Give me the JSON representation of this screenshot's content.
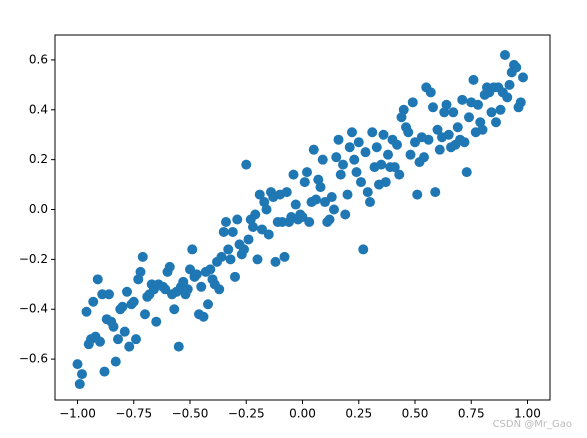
{
  "chart_data": {
    "type": "scatter",
    "color": "#1f77b4",
    "watermark": "CSDN @Mr_Gao",
    "xlim": [
      -1.1,
      1.1
    ],
    "ylim": [
      -0.764,
      0.7
    ],
    "xticks": [
      {
        "value": -1,
        "label": "−1.00"
      },
      {
        "value": -0.75,
        "label": "−0.75"
      },
      {
        "value": -0.5,
        "label": "−0.50"
      },
      {
        "value": -0.25,
        "label": "−0.25"
      },
      {
        "value": 0,
        "label": "0.00"
      },
      0.25,
      {
        "value": 0.5,
        "label": "0.50"
      },
      0.75,
      {
        "value": 1,
        "label": "1.00"
      }
    ],
    "yticks": [
      {
        "value": -0.6,
        "label": "−0.6"
      },
      {
        "value": -0.4,
        "label": "−0.4"
      },
      {
        "value": -0.2,
        "label": "−0.2"
      },
      {
        "value": 0,
        "label": "0.0"
      },
      0.2,
      0.4,
      0.6
    ],
    "x": [
      -1.0,
      -0.99,
      -0.98,
      -0.96,
      -0.95,
      -0.94,
      -0.93,
      -0.92,
      -0.91,
      -0.9,
      -0.89,
      -0.88,
      -0.87,
      -0.86,
      -0.85,
      -0.84,
      -0.83,
      -0.82,
      -0.81,
      -0.8,
      -0.79,
      -0.78,
      -0.77,
      -0.76,
      -0.75,
      -0.74,
      -0.73,
      -0.72,
      -0.71,
      -0.7,
      -0.69,
      -0.68,
      -0.67,
      -0.66,
      -0.65,
      -0.64,
      -0.62,
      -0.61,
      -0.6,
      -0.59,
      -0.58,
      -0.57,
      -0.56,
      -0.55,
      -0.54,
      -0.53,
      -0.52,
      -0.51,
      -0.5,
      -0.49,
      -0.48,
      -0.47,
      -0.46,
      -0.45,
      -0.44,
      -0.43,
      -0.42,
      -0.41,
      -0.4,
      -0.39,
      -0.38,
      -0.37,
      -0.36,
      -0.35,
      -0.34,
      -0.33,
      -0.32,
      -0.31,
      -0.3,
      -0.29,
      -0.28,
      -0.27,
      -0.26,
      -0.25,
      -0.24,
      -0.23,
      -0.22,
      -0.21,
      -0.2,
      -0.19,
      -0.18,
      -0.17,
      -0.16,
      -0.15,
      -0.14,
      -0.13,
      -0.12,
      -0.11,
      -0.1,
      -0.09,
      -0.08,
      -0.07,
      -0.06,
      -0.05,
      -0.04,
      -0.03,
      -0.02,
      -0.01,
      0.0,
      0.01,
      0.02,
      0.03,
      0.04,
      0.05,
      0.06,
      0.07,
      0.08,
      0.09,
      0.1,
      0.11,
      0.12,
      0.13,
      0.14,
      0.15,
      0.16,
      0.17,
      0.18,
      0.19,
      0.2,
      0.21,
      0.22,
      0.23,
      0.24,
      0.25,
      0.26,
      0.27,
      0.28,
      0.29,
      0.3,
      0.31,
      0.32,
      0.33,
      0.34,
      0.35,
      0.36,
      0.37,
      0.38,
      0.39,
      0.4,
      0.41,
      0.42,
      0.43,
      0.44,
      0.45,
      0.46,
      0.47,
      0.48,
      0.49,
      0.5,
      0.51,
      0.52,
      0.53,
      0.54,
      0.55,
      0.56,
      0.57,
      0.58,
      0.59,
      0.6,
      0.61,
      0.62,
      0.63,
      0.64,
      0.65,
      0.66,
      0.67,
      0.68,
      0.69,
      0.7,
      0.71,
      0.72,
      0.73,
      0.74,
      0.75,
      0.76,
      0.77,
      0.78,
      0.79,
      0.8,
      0.81,
      0.82,
      0.83,
      0.84,
      0.85,
      0.86,
      0.87,
      0.88,
      0.89,
      0.9,
      0.91,
      0.92,
      0.93,
      0.94,
      0.95,
      0.96,
      0.97,
      0.98
    ],
    "values": [
      -0.62,
      -0.7,
      -0.66,
      -0.41,
      -0.54,
      -0.52,
      -0.37,
      -0.51,
      -0.28,
      -0.53,
      -0.34,
      -0.65,
      -0.44,
      -0.34,
      -0.45,
      -0.47,
      -0.61,
      -0.52,
      -0.4,
      -0.39,
      -0.49,
      -0.33,
      -0.55,
      -0.38,
      -0.37,
      -0.52,
      -0.28,
      -0.25,
      -0.19,
      -0.42,
      -0.35,
      -0.34,
      -0.3,
      -0.32,
      -0.45,
      -0.3,
      -0.31,
      -0.32,
      -0.25,
      -0.23,
      -0.34,
      -0.4,
      -0.33,
      -0.55,
      -0.31,
      -0.29,
      -0.34,
      -0.32,
      -0.24,
      -0.16,
      -0.27,
      -0.26,
      -0.42,
      -0.31,
      -0.43,
      -0.25,
      -0.38,
      -0.24,
      -0.28,
      -0.3,
      -0.21,
      -0.32,
      -0.19,
      -0.09,
      -0.05,
      -0.16,
      -0.2,
      -0.09,
      -0.27,
      -0.04,
      -0.14,
      -0.18,
      -0.16,
      0.18,
      -0.12,
      -0.04,
      -0.07,
      -0.02,
      -0.2,
      0.06,
      -0.08,
      0.03,
      0.0,
      -0.1,
      0.07,
      0.05,
      -0.21,
      -0.05,
      0.06,
      -0.05,
      -0.19,
      0.07,
      -0.05,
      -0.03,
      0.14,
      0.02,
      -0.04,
      -0.02,
      -0.03,
      0.11,
      0.15,
      -0.05,
      0.03,
      0.24,
      0.04,
      0.12,
      0.09,
      0.2,
      0.03,
      -0.05,
      -0.04,
      0.05,
      0.0,
      0.21,
      0.28,
      0.14,
      0.18,
      -0.02,
      0.06,
      0.25,
      0.31,
      0.2,
      0.15,
      0.27,
      0.11,
      -0.16,
      0.23,
      0.07,
      0.03,
      0.31,
      0.17,
      0.25,
      0.1,
      0.18,
      0.3,
      0.11,
      0.22,
      0.17,
      0.28,
      0.17,
      0.26,
      0.14,
      0.37,
      0.4,
      0.33,
      0.31,
      0.22,
      0.43,
      0.27,
      0.06,
      0.19,
      0.29,
      0.21,
      0.49,
      0.28,
      0.47,
      0.41,
      0.07,
      0.32,
      0.24,
      0.29,
      0.39,
      0.42,
      0.3,
      0.25,
      0.39,
      0.26,
      0.33,
      0.28,
      0.44,
      0.27,
      0.15,
      0.37,
      0.43,
      0.52,
      0.31,
      0.42,
      0.35,
      0.32,
      0.46,
      0.49,
      0.47,
      0.39,
      0.49,
      0.35,
      0.49,
      0.4,
      0.47,
      0.62,
      0.45,
      0.5,
      0.55,
      0.58,
      0.57,
      0.41,
      0.43,
      0.53
    ]
  }
}
